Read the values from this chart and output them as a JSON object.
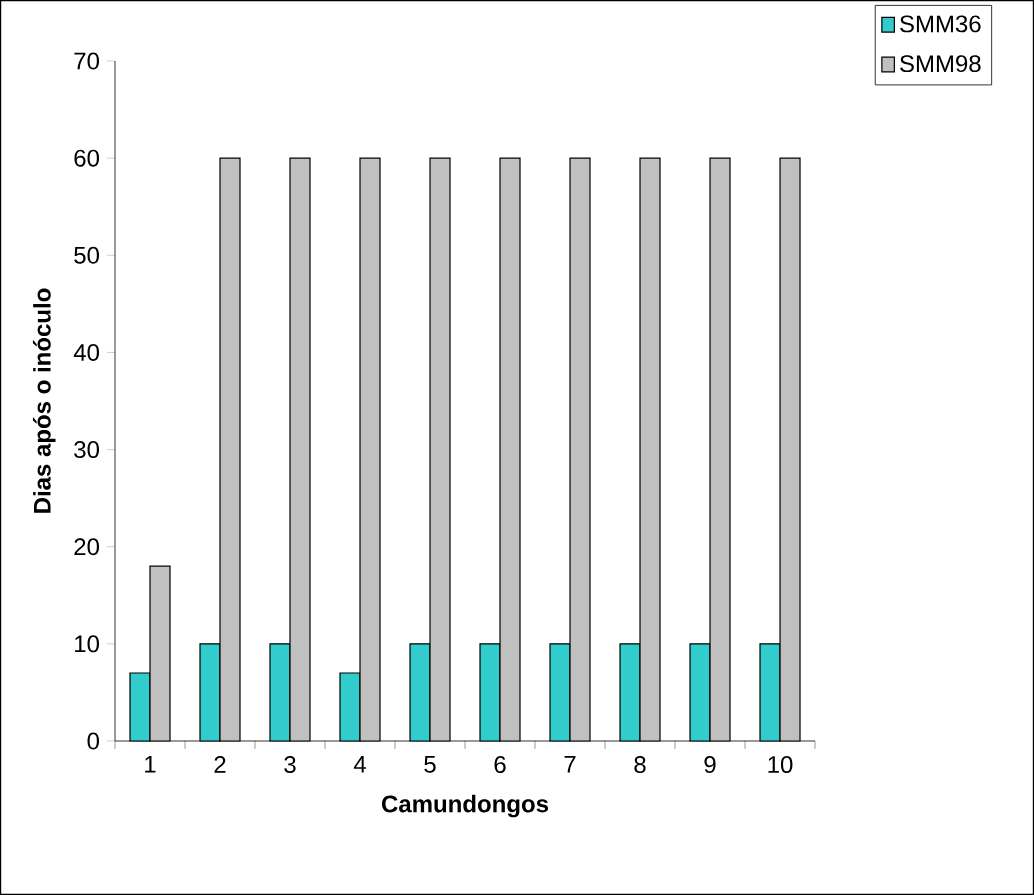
{
  "chart_data": {
    "type": "bar",
    "xlabel": "Camundongos",
    "ylabel": "Dias após o inóculo",
    "categories": [
      "1",
      "2",
      "3",
      "4",
      "5",
      "6",
      "7",
      "8",
      "9",
      "10"
    ],
    "series": [
      {
        "name": "SMM36",
        "color": "#33cccc",
        "values": [
          7,
          10,
          10,
          7,
          10,
          10,
          10,
          10,
          10,
          10
        ]
      },
      {
        "name": "SMM98",
        "color": "#c0c0c0",
        "values": [
          18,
          60,
          60,
          60,
          60,
          60,
          60,
          60,
          60,
          60
        ]
      }
    ],
    "ylim": [
      0,
      70
    ],
    "yticks": [
      0,
      10,
      20,
      30,
      40,
      50,
      60,
      70
    ],
    "grid": false,
    "legend": "top right"
  }
}
